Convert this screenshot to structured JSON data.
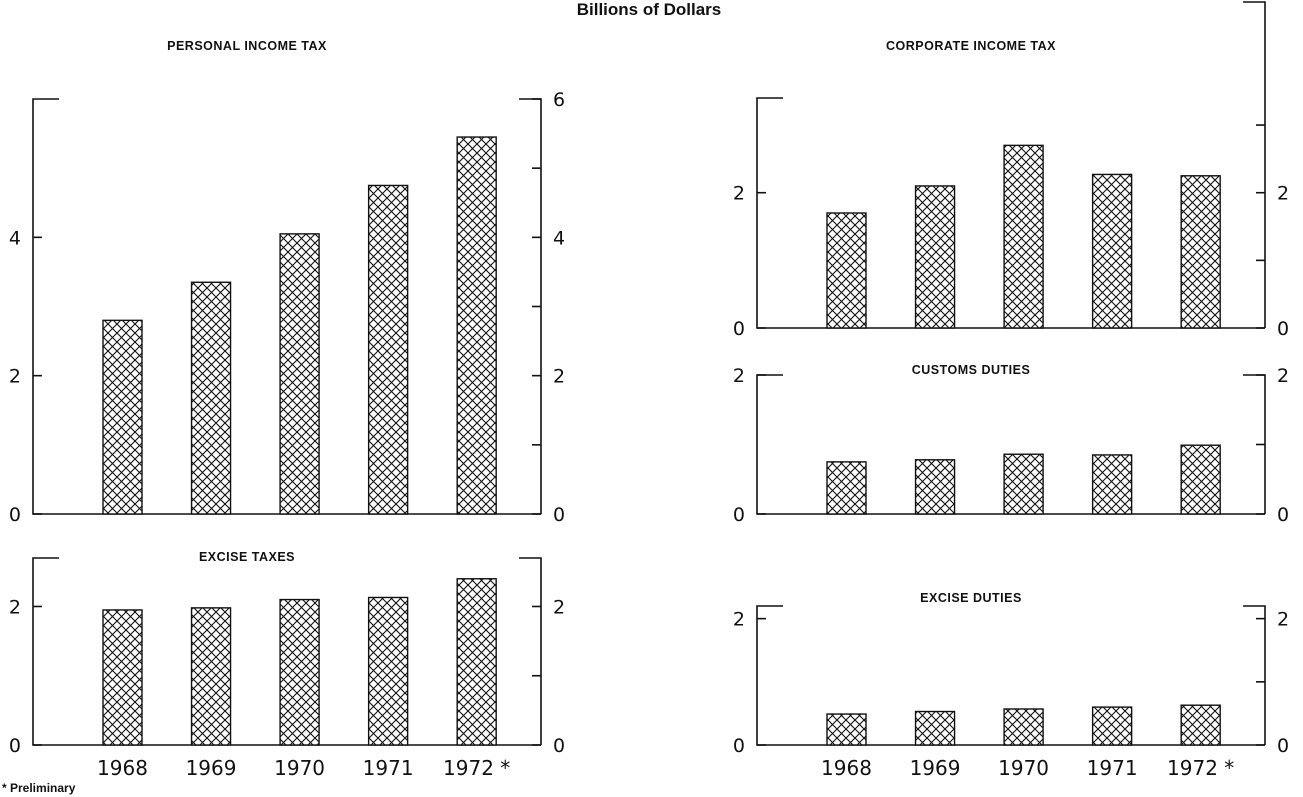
{
  "header": {
    "units_title": "Billions of Dollars",
    "footnote": "* Preliminary"
  },
  "chart_data": [
    {
      "id": "personal-income-tax",
      "type": "bar",
      "title": "PERSONAL INCOME TAX",
      "categories": [
        "1968",
        "1969",
        "1970",
        "1971",
        "1972"
      ],
      "values": [
        2.8,
        3.35,
        4.05,
        4.75,
        5.45
      ],
      "ylim": [
        0,
        6
      ],
      "left_ticks": [
        "0",
        "2",
        "4"
      ],
      "right_ticks": [
        "0",
        "2",
        "4",
        "6"
      ],
      "tick_marker": "",
      "grid": false
    },
    {
      "id": "excise-taxes",
      "type": "bar",
      "title": "EXCISE TAXES",
      "categories": [
        "1968",
        "1969",
        "1970",
        "1971",
        "1972"
      ],
      "category_labels": [
        "1968",
        "1969",
        "1970",
        "1971",
        "1972 *"
      ],
      "values": [
        1.95,
        1.98,
        2.1,
        2.13,
        2.4
      ],
      "ylim": [
        0,
        2.7
      ],
      "left_ticks": [
        "0",
        "2"
      ],
      "right_ticks": [
        "0",
        "2"
      ],
      "grid": false
    },
    {
      "id": "corporate-income-tax",
      "type": "bar",
      "title": "CORPORATE INCOME TAX",
      "categories": [
        "1968",
        "1969",
        "1970",
        "1971",
        "1972"
      ],
      "values": [
        1.7,
        2.1,
        2.7,
        2.27,
        2.25
      ],
      "ylim": [
        0,
        3.4
      ],
      "left_ticks": [
        "0",
        "2"
      ],
      "right_ticks": [
        "0",
        "2"
      ],
      "grid": false
    },
    {
      "id": "customs-duties",
      "type": "bar",
      "title": "CUSTOMS DUTIES",
      "categories": [
        "1968",
        "1969",
        "1970",
        "1971",
        "1972"
      ],
      "values": [
        0.75,
        0.78,
        0.86,
        0.85,
        0.99
      ],
      "ylim": [
        0,
        2
      ],
      "left_ticks": [
        "0",
        "2"
      ],
      "right_ticks": [
        "0",
        "2"
      ],
      "grid": false
    },
    {
      "id": "excise-duties",
      "type": "bar",
      "title": "EXCISE DUTIES",
      "categories": [
        "1968",
        "1969",
        "1970",
        "1971",
        "1972"
      ],
      "category_labels": [
        "1968",
        "1969",
        "1970",
        "1971",
        "1972 *"
      ],
      "values": [
        0.49,
        0.53,
        0.57,
        0.6,
        0.63
      ],
      "ylim": [
        0,
        2.2
      ],
      "left_ticks": [
        "0",
        "2"
      ],
      "right_ticks": [
        "0",
        "2"
      ],
      "grid": false
    }
  ]
}
